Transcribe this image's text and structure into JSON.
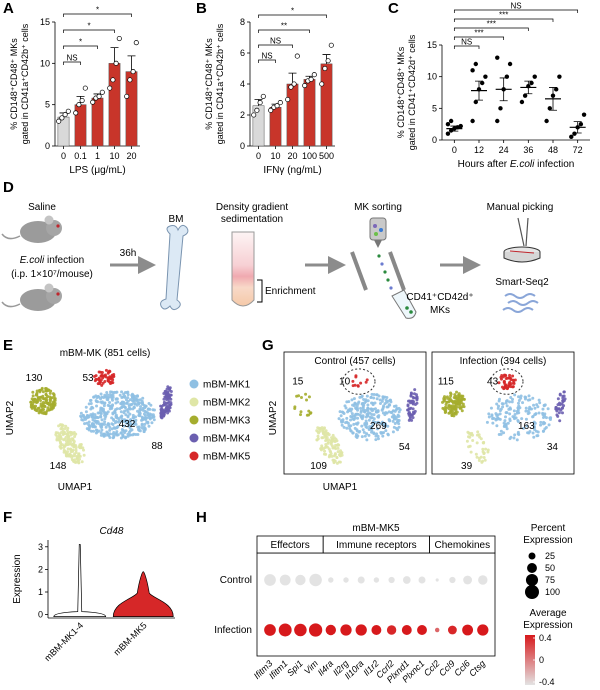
{
  "panel_labels": {
    "a": "A",
    "b": "B",
    "c": "C",
    "d": "D",
    "e": "E",
    "f": "F",
    "g": "G",
    "h": "H"
  },
  "chart_data": [
    {
      "type": "bar",
      "y_label": [
        "% CD148⁺CD48⁺ MKs",
        "gated in CD41a⁺CD42b⁺ cells"
      ],
      "x_label": "LPS (μg/mL)",
      "categories": [
        "0",
        "0.1",
        "1",
        "10",
        "20"
      ],
      "values": [
        3.5,
        5,
        5.8,
        10,
        9
      ],
      "errors": [
        0.5,
        1,
        0.5,
        1.9,
        1.9
      ],
      "points": [
        [
          3,
          3.4,
          3.8,
          4.2
        ],
        [
          4,
          5,
          5.5,
          7
        ],
        [
          5.3,
          5.8,
          6,
          6.5
        ],
        [
          7,
          8,
          10,
          13
        ],
        [
          6,
          8,
          9,
          12.5
        ]
      ],
      "colors": [
        "#d9d9d9",
        "#c8352a",
        "#c8352a",
        "#c8352a",
        "#c8352a"
      ],
      "significance": [
        null,
        "NS",
        "*",
        "*",
        "*"
      ],
      "ylim": [
        0,
        15
      ],
      "yticks": [
        0,
        5,
        10,
        15
      ]
    },
    {
      "type": "bar",
      "y_label": [
        "% CD148⁺CD48⁺ MKs",
        "gated in CD41a⁺CD42b⁺ cells"
      ],
      "x_label": "IFNγ (ng/mL)",
      "categories": [
        "0",
        "10",
        "20",
        "100",
        "500"
      ],
      "values": [
        2.6,
        2.5,
        4,
        4.3,
        5.3
      ],
      "errors": [
        0.4,
        0.2,
        0.7,
        0.2,
        0.6
      ],
      "points": [
        [
          2,
          2.3,
          2.8,
          3.2
        ],
        [
          2.3,
          2.5,
          2.6,
          2.8
        ],
        [
          3,
          3.8,
          4,
          5.8
        ],
        [
          3.9,
          4.2,
          4.3,
          4.6
        ],
        [
          4,
          5,
          5.5,
          6.5
        ]
      ],
      "colors": [
        "#d9d9d9",
        "#c8352a",
        "#c8352a",
        "#c8352a",
        "#c8352a"
      ],
      "significance": [
        null,
        "NS",
        "NS",
        "**",
        "*"
      ],
      "ylim": [
        0,
        8
      ],
      "yticks": [
        0,
        2,
        4,
        6,
        8
      ]
    },
    {
      "type": "strip",
      "y_label": [
        "% CD148⁺CD48⁺ MKs",
        "gated in CD41⁺CD42d⁺ cells"
      ],
      "x_label": [
        "Hours after ",
        "E.coli",
        " infection"
      ],
      "categories": [
        "0",
        "12",
        "24",
        "36",
        "48",
        "72"
      ],
      "values": [
        1.8,
        7.8,
        8,
        8.3,
        6.5,
        2
      ],
      "errors": [
        0.4,
        1.5,
        1.8,
        1,
        1.8,
        0.9
      ],
      "points": [
        [
          1,
          1.5,
          1.8,
          2,
          2.2,
          2.5,
          3
        ],
        [
          3,
          6,
          8,
          9,
          10,
          11,
          12
        ],
        [
          3,
          5,
          8,
          10,
          12,
          13
        ],
        [
          6,
          7,
          8.5,
          9,
          10
        ],
        [
          3,
          5,
          7,
          8,
          10
        ],
        [
          0.5,
          1,
          2,
          2.5,
          4
        ]
      ],
      "significance": [
        null,
        "NS",
        "***",
        "***",
        "***",
        "NS"
      ],
      "ylim": [
        0,
        15
      ],
      "yticks": [
        0,
        5,
        10,
        15
      ]
    },
    {
      "type": "violin",
      "title": "Cd48",
      "y_label": "Expression",
      "categories": [
        "mBM-MK1-4",
        "mBM-MK5"
      ],
      "maxima": [
        3.1,
        1.9
      ],
      "colors": [
        "#ffffff",
        "#d62728"
      ],
      "ylim": [
        -0.15,
        3.3
      ],
      "yticks": [
        0,
        1,
        2,
        3
      ]
    },
    {
      "type": "dotplot",
      "title": "mBM-MK5",
      "groups": [
        {
          "name": "Effectors",
          "categories": [
            "Ifitm3",
            "Ifitm1",
            "Spi1",
            "Vim"
          ]
        },
        {
          "name": "Immune receptors",
          "categories": [
            "Il4ra",
            "Il2rg",
            "Il10ra",
            "Il1r2",
            "Ccrl2",
            "Plxnd1",
            "Plxnc1"
          ]
        },
        {
          "name": "Chemokines",
          "categories": [
            "Ccl2",
            "Ccl9",
            "Ccl6",
            "Ctsg"
          ]
        }
      ],
      "series": [
        {
          "name": "Control",
          "percent": [
            70,
            60,
            55,
            80,
            15,
            15,
            25,
            15,
            20,
            30,
            25,
            5,
            20,
            40,
            45
          ],
          "average": [
            -0.4,
            -0.4,
            -0.4,
            -0.4,
            -0.4,
            -0.4,
            -0.4,
            -0.4,
            -0.4,
            -0.4,
            -0.4,
            -0.4,
            -0.4,
            -0.4,
            -0.4
          ]
        },
        {
          "name": "Infection",
          "percent": [
            70,
            85,
            80,
            90,
            55,
            65,
            65,
            50,
            45,
            50,
            50,
            10,
            40,
            60,
            65
          ],
          "average": [
            0.4,
            0.4,
            0.4,
            0.4,
            0.4,
            0.4,
            0.4,
            0.4,
            0.35,
            0.4,
            0.4,
            0.1,
            0.35,
            0.4,
            0.4
          ]
        }
      ],
      "size_legend": {
        "title": [
          "Percent",
          "Expression"
        ],
        "ticks": [
          25,
          50,
          75,
          100
        ]
      },
      "color_legend": {
        "title": [
          "Average",
          "Expression"
        ],
        "ticks": [
          0.4,
          0,
          -0.4
        ],
        "colors": [
          "#e3e3e3",
          "#d7191c"
        ]
      },
      "clim": [
        -0.4,
        0.4
      ]
    }
  ],
  "diagram": {
    "saline": "Saline",
    "infection": [
      "E.coli",
      " infection"
    ],
    "dose": "(i.p. 1×10⁷/mouse)",
    "time": "36h",
    "bm": "BM",
    "density": [
      "Density gradient",
      "sedimentation"
    ],
    "enrichment": "Enrichment",
    "sorting": "MK sorting",
    "sorted": [
      "CD41⁺CD42d⁺",
      "MKs"
    ],
    "picking": "Manual picking",
    "seq": "Smart-Seq2"
  },
  "umap_e": {
    "title": "mBM-MK (851 cells)",
    "x_label": "UMAP1",
    "y_label": "UMAP2",
    "clusters": [
      {
        "name": "mBM-MK1",
        "color": "#8fc0e3",
        "count": 432
      },
      {
        "name": "mBM-MK2",
        "color": "#dfe6a6",
        "count": 148
      },
      {
        "name": "mBM-MK3",
        "color": "#a5ad2e",
        "count": 130
      },
      {
        "name": "mBM-MK4",
        "color": "#6b5fb0",
        "count": 88
      },
      {
        "name": "mBM-MK5",
        "color": "#d62728",
        "count": 53
      }
    ]
  },
  "umap_g": {
    "x_label": "UMAP1",
    "y_label": "UMAP2",
    "panels": [
      {
        "title": "Control (457 cells)",
        "counts": [
          269,
          109,
          15,
          54,
          10
        ]
      },
      {
        "title": "Infection (394 cells)",
        "counts": [
          163,
          39,
          115,
          34,
          43
        ]
      }
    ]
  }
}
